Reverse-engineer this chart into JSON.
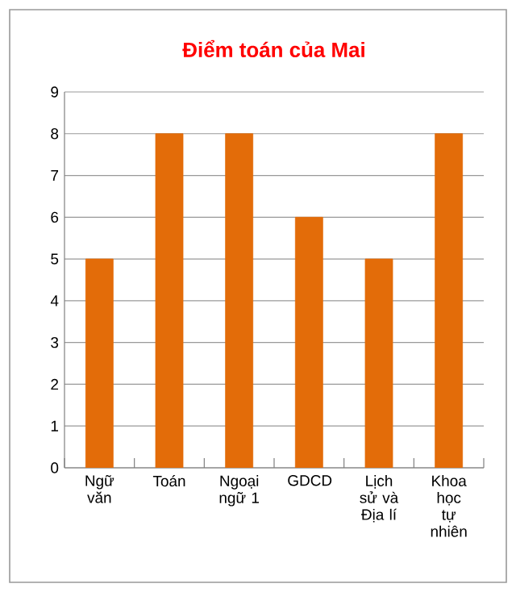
{
  "chart_data": {
    "type": "bar",
    "title": "Điểm toán của Mai",
    "categories": [
      "Ngữ văn",
      "Toán",
      "Ngoại ngữ 1",
      "GDCD",
      "Lịch sử và Địa lí",
      "Khoa học tự nhiên"
    ],
    "values": [
      5,
      8,
      8,
      6,
      5,
      8
    ],
    "color": "#e36c09",
    "ylim": [
      0,
      9
    ],
    "yticks": [
      0,
      1,
      2,
      3,
      4,
      5,
      6,
      7,
      8,
      9
    ],
    "grid": "y"
  }
}
